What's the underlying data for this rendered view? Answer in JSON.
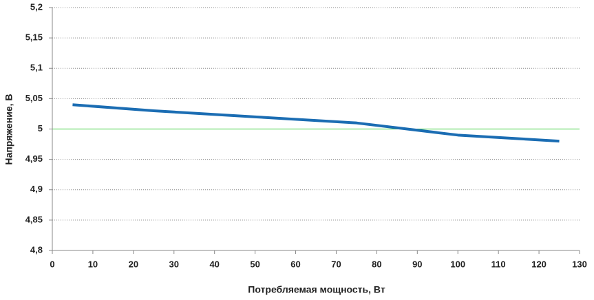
{
  "chart_data": {
    "type": "line",
    "x_label": "Потребляемая мощность, Вт",
    "y_label": "Напряжение, В",
    "x": [
      5,
      25,
      50,
      75,
      100,
      125
    ],
    "series": [
      {
        "name": "Напряжение",
        "color": "#1b6db3",
        "values": [
          5.04,
          5.03,
          5.02,
          5.01,
          4.99,
          4.98
        ]
      }
    ],
    "xlim": [
      0,
      130
    ],
    "xticks": [
      0,
      10,
      20,
      30,
      40,
      50,
      60,
      70,
      80,
      90,
      100,
      110,
      120,
      130
    ],
    "ylim": [
      4.8,
      5.2
    ],
    "yticks": [
      {
        "value": 4.8,
        "label": "4,8"
      },
      {
        "value": 4.85,
        "label": "4,85"
      },
      {
        "value": 4.9,
        "label": "4,9"
      },
      {
        "value": 4.95,
        "label": "4,95"
      },
      5,
      {
        "value": 5.05,
        "label": "5,05"
      },
      {
        "value": 5.1,
        "label": "5,1"
      },
      {
        "value": 5.15,
        "label": "5,15"
      },
      {
        "value": 5.2,
        "label": "5,2"
      }
    ],
    "grid": true,
    "reference_line": {
      "value": 5,
      "color": "#33cc33"
    }
  }
}
